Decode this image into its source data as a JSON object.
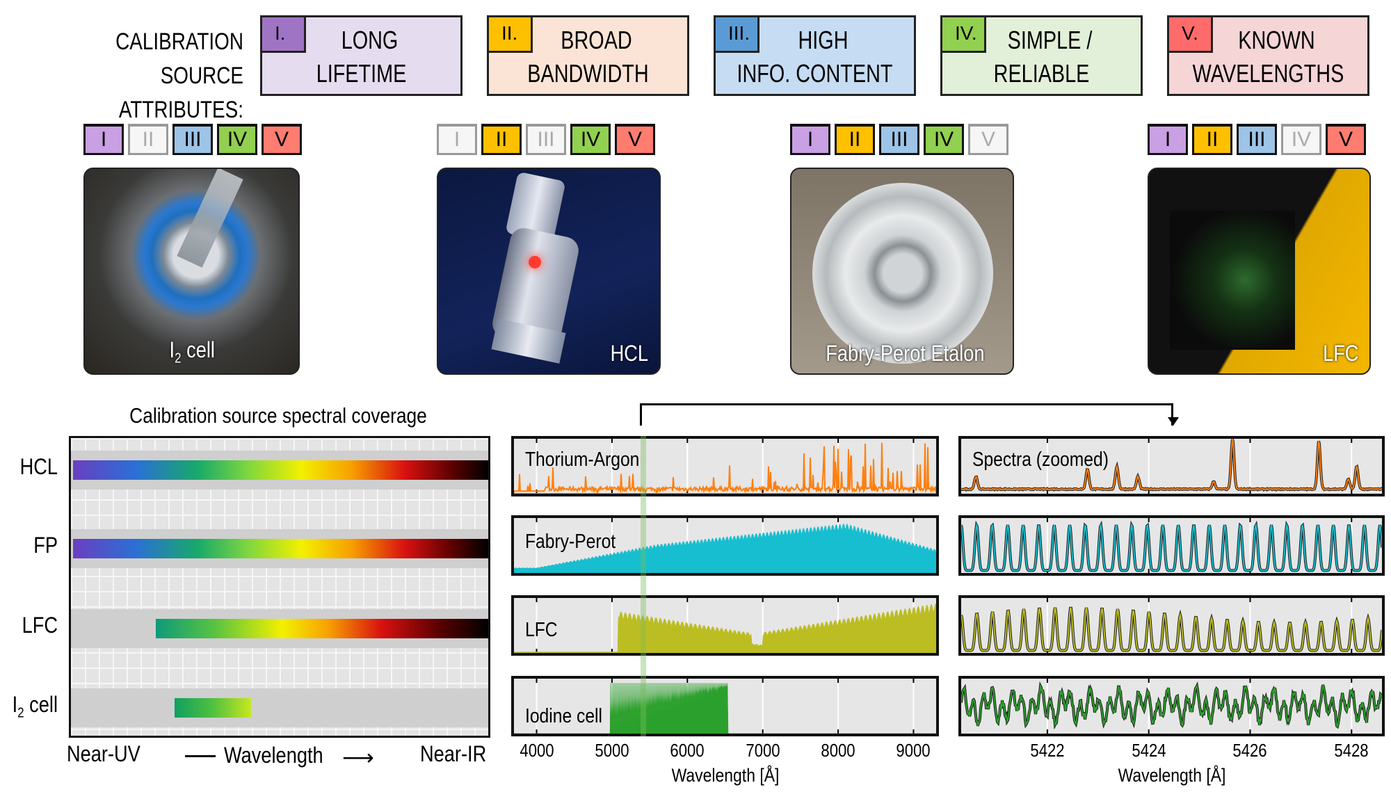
{
  "header": {
    "line1": "CALIBRATION SOURCE",
    "line2": "ATTRIBUTES:"
  },
  "attributes": [
    {
      "numeral": "I.",
      "line1": "LONG",
      "line2": "LIFETIME",
      "bg": "#e6dcef",
      "accent": "#a074c4"
    },
    {
      "numeral": "II.",
      "line1": "BROAD",
      "line2": "BANDWIDTH",
      "bg": "#fbe4d6",
      "accent": "#ffc000"
    },
    {
      "numeral": "III.",
      "line1": "HIGH",
      "line2": "INFO. CONTENT",
      "bg": "#c6dcf2",
      "accent": "#5b9bd5"
    },
    {
      "numeral": "IV.",
      "line1": "SIMPLE /",
      "line2": "RELIABLE",
      "bg": "#e2f0d9",
      "accent": "#92d050"
    },
    {
      "numeral": "V.",
      "line1": "KNOWN",
      "line2": "WAVELENGTHS",
      "bg": "#f5d5d5",
      "accent": "#ff6b6b"
    }
  ],
  "badge_labels": [
    "I",
    "II",
    "III",
    "IV",
    "V"
  ],
  "badge_colors": [
    "#c9a0e3",
    "#ffc000",
    "#9dc3e6",
    "#92d050",
    "#ff7c70"
  ],
  "sources": [
    {
      "caption_main": "I",
      "caption_sub": "2",
      "caption_rest": " cell",
      "active": [
        true,
        false,
        true,
        true,
        true
      ]
    },
    {
      "caption": "HCL",
      "active": [
        false,
        true,
        false,
        true,
        true
      ]
    },
    {
      "caption": "Fabry-Perot Etalon",
      "active": [
        true,
        true,
        true,
        true,
        false
      ]
    },
    {
      "caption": "LFC",
      "active": [
        true,
        true,
        true,
        false,
        true
      ]
    }
  ],
  "coverage": {
    "title": "Calibration source spectral coverage",
    "rows": [
      {
        "label": "HCL"
      },
      {
        "label": "FP"
      },
      {
        "label": "LFC"
      },
      {
        "label_main": "I",
        "label_sub": "2",
        "label_rest": " cell"
      }
    ],
    "x_left": "Near-UV",
    "x_mid": "Wavelength",
    "x_right": "Near-IR"
  },
  "spectra": {
    "panels": [
      {
        "label": "Thorium-Argon",
        "color": "#ff7f0e"
      },
      {
        "label": "Fabry-Perot",
        "color": "#17becf"
      },
      {
        "label": "LFC",
        "color": "#bcbd22"
      },
      {
        "label": "Iodine cell",
        "color": "#2ca02c"
      }
    ],
    "zoom_label": "Spectra (zoomed)",
    "xticks": [
      "4000",
      "5000",
      "6000",
      "7000",
      "8000",
      "9000"
    ],
    "xlim": [
      3700,
      9300
    ],
    "highlight_range": [
      5380,
      5450
    ],
    "zoom_xticks": [
      "5422",
      "5424",
      "5426",
      "5428"
    ],
    "zoom_xlim": [
      5420.3,
      5428.6
    ],
    "xlabel": "Wavelength [Å]"
  }
}
